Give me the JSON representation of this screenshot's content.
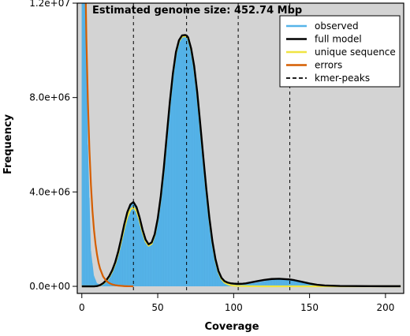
{
  "chart_data": {
    "type": "area",
    "title": "Estimated genome size: 452.74 Mbp",
    "xlabel": "Coverage",
    "ylabel": "Frequency",
    "xlim": [
      -3,
      212
    ],
    "ylim": [
      -300000,
      12000000
    ],
    "x_ticks": [
      0,
      50,
      100,
      150,
      200
    ],
    "x_tick_labels": [
      "0",
      "50",
      "100",
      "150",
      "200"
    ],
    "y_ticks": [
      0,
      4000000,
      8000000,
      12000000
    ],
    "y_tick_labels": [
      "0.0e+00",
      "4.0e+06",
      "8.0e+06",
      "1.2e+07"
    ],
    "background_color": "#d3d3d3",
    "grid": false,
    "legend_position": "top-right",
    "kmer_peaks": [
      34,
      69,
      103,
      137
    ],
    "series": [
      {
        "name": "observed",
        "color": "#56b4e9",
        "style": "filled-area",
        "x": [
          0,
          1,
          2,
          3,
          4,
          6,
          8,
          10,
          12,
          14,
          16,
          18,
          20,
          22,
          24,
          26,
          28,
          30,
          32,
          34,
          36,
          38,
          40,
          42,
          44,
          46,
          48,
          50,
          52,
          54,
          56,
          58,
          60,
          62,
          64,
          66,
          68,
          69,
          70,
          72,
          74,
          76,
          78,
          80,
          82,
          84,
          86,
          88,
          90,
          92,
          94,
          96,
          98,
          100,
          102,
          104,
          106,
          108,
          110,
          115,
          120,
          125,
          130,
          135,
          137,
          140,
          145,
          150,
          155,
          160,
          170,
          180,
          190,
          200,
          210
        ],
        "values": [
          12500000,
          12500000,
          12500000,
          12500000,
          6000000,
          1500000,
          450000,
          130000,
          80000,
          100000,
          180000,
          320000,
          560000,
          920000,
          1400000,
          1980000,
          2600000,
          3120000,
          3450000,
          3550000,
          3330000,
          2900000,
          2380000,
          1960000,
          1770000,
          1850000,
          2200000,
          2850000,
          3800000,
          5000000,
          6400000,
          7800000,
          9000000,
          9900000,
          10400000,
          10600000,
          10620000,
          10600000,
          10520000,
          10050000,
          9300000,
          8200000,
          6850000,
          5450000,
          4100000,
          2880000,
          1880000,
          1130000,
          620000,
          330000,
          190000,
          130000,
          100000,
          85000,
          75000,
          75000,
          78000,
          90000,
          110000,
          160000,
          220000,
          280000,
          300000,
          300000,
          298000,
          280000,
          200000,
          120000,
          60000,
          30000,
          15000,
          10000,
          6000,
          5000,
          5000
        ]
      },
      {
        "name": "full model",
        "color": "#000000",
        "style": "line",
        "x": [
          0,
          2,
          4,
          6,
          8,
          10,
          12,
          14,
          16,
          18,
          20,
          22,
          24,
          26,
          28,
          30,
          32,
          34,
          36,
          38,
          40,
          42,
          44,
          46,
          48,
          50,
          52,
          54,
          56,
          58,
          60,
          62,
          64,
          66,
          68,
          69,
          70,
          72,
          74,
          76,
          78,
          80,
          82,
          84,
          86,
          88,
          90,
          92,
          94,
          96,
          98,
          100,
          102,
          104,
          106,
          108,
          110,
          115,
          120,
          125,
          130,
          135,
          137,
          140,
          145,
          150,
          155,
          160,
          170,
          180,
          190,
          200,
          210
        ],
        "values": [
          0,
          0,
          0,
          0,
          0,
          10000,
          50000,
          130000,
          250000,
          430000,
          680000,
          1020000,
          1480000,
          2040000,
          2640000,
          3150000,
          3470000,
          3570000,
          3360000,
          2930000,
          2400000,
          1980000,
          1780000,
          1860000,
          2210000,
          2870000,
          3820000,
          5020000,
          6430000,
          7830000,
          9030000,
          9930000,
          10430000,
          10630000,
          10650000,
          10630000,
          10550000,
          10080000,
          9330000,
          8230000,
          6880000,
          5480000,
          4130000,
          2910000,
          1910000,
          1160000,
          650000,
          360000,
          220000,
          160000,
          130000,
          115000,
          105000,
          105000,
          110000,
          125000,
          150000,
          210000,
          270000,
          310000,
          320000,
          300000,
          290000,
          260000,
          190000,
          120000,
          65000,
          35000,
          15000,
          10000,
          6000,
          5000,
          5000
        ]
      },
      {
        "name": "unique sequence",
        "color": "#f0e442",
        "style": "line",
        "x": [
          0,
          2,
          4,
          6,
          8,
          10,
          12,
          14,
          16,
          18,
          20,
          22,
          24,
          26,
          28,
          30,
          32,
          34,
          36,
          38,
          40,
          42,
          44,
          46,
          48,
          50,
          52,
          54,
          56,
          58,
          60,
          62,
          64,
          66,
          68,
          69,
          70,
          72,
          74,
          76,
          78,
          80,
          82,
          84,
          86,
          88,
          90,
          92,
          94,
          96,
          98,
          100,
          102,
          104,
          106,
          108,
          110,
          115,
          120,
          130,
          140,
          160,
          180,
          210
        ],
        "values": [
          0,
          0,
          0,
          0,
          0,
          10000,
          40000,
          110000,
          220000,
          390000,
          630000,
          960000,
          1390000,
          1920000,
          2480000,
          2950000,
          3250000,
          3350000,
          3190000,
          2800000,
          2300000,
          1900000,
          1720000,
          1800000,
          2160000,
          2820000,
          3770000,
          4970000,
          6380000,
          7780000,
          8980000,
          9880000,
          10380000,
          10580000,
          10600000,
          10580000,
          10500000,
          10030000,
          9280000,
          8180000,
          6830000,
          5430000,
          4080000,
          2860000,
          1860000,
          1110000,
          600000,
          310000,
          160000,
          90000,
          50000,
          30000,
          20000,
          15000,
          10000,
          8000,
          5000,
          3000,
          2000,
          1000,
          500,
          0,
          0,
          0
        ]
      },
      {
        "name": "errors",
        "color": "#d55e00",
        "style": "line",
        "x": [
          2.5,
          3,
          4,
          5,
          6,
          7,
          8,
          9,
          10,
          11,
          12,
          14,
          16,
          18,
          20,
          22,
          24,
          26,
          28,
          30,
          32,
          34
        ],
        "values": [
          12500000,
          10500000,
          7800000,
          5800000,
          4300000,
          3200000,
          2400000,
          1800000,
          1350000,
          1000000,
          750000,
          420000,
          240000,
          140000,
          80000,
          50000,
          30000,
          20000,
          10000,
          5000,
          3000,
          2000
        ]
      },
      {
        "name": "kmer-peaks",
        "color": "#000000",
        "style": "dashed-vertical"
      }
    ]
  }
}
